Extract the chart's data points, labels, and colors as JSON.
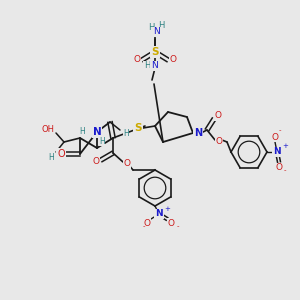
{
  "bg_color": "#e8e8e8",
  "atom_colors": {
    "C": "#1a1a1a",
    "N": "#1a1acc",
    "O": "#cc1a1a",
    "S": "#ccaa00",
    "H": "#2a8080"
  },
  "bond_color": "#1a1a1a"
}
